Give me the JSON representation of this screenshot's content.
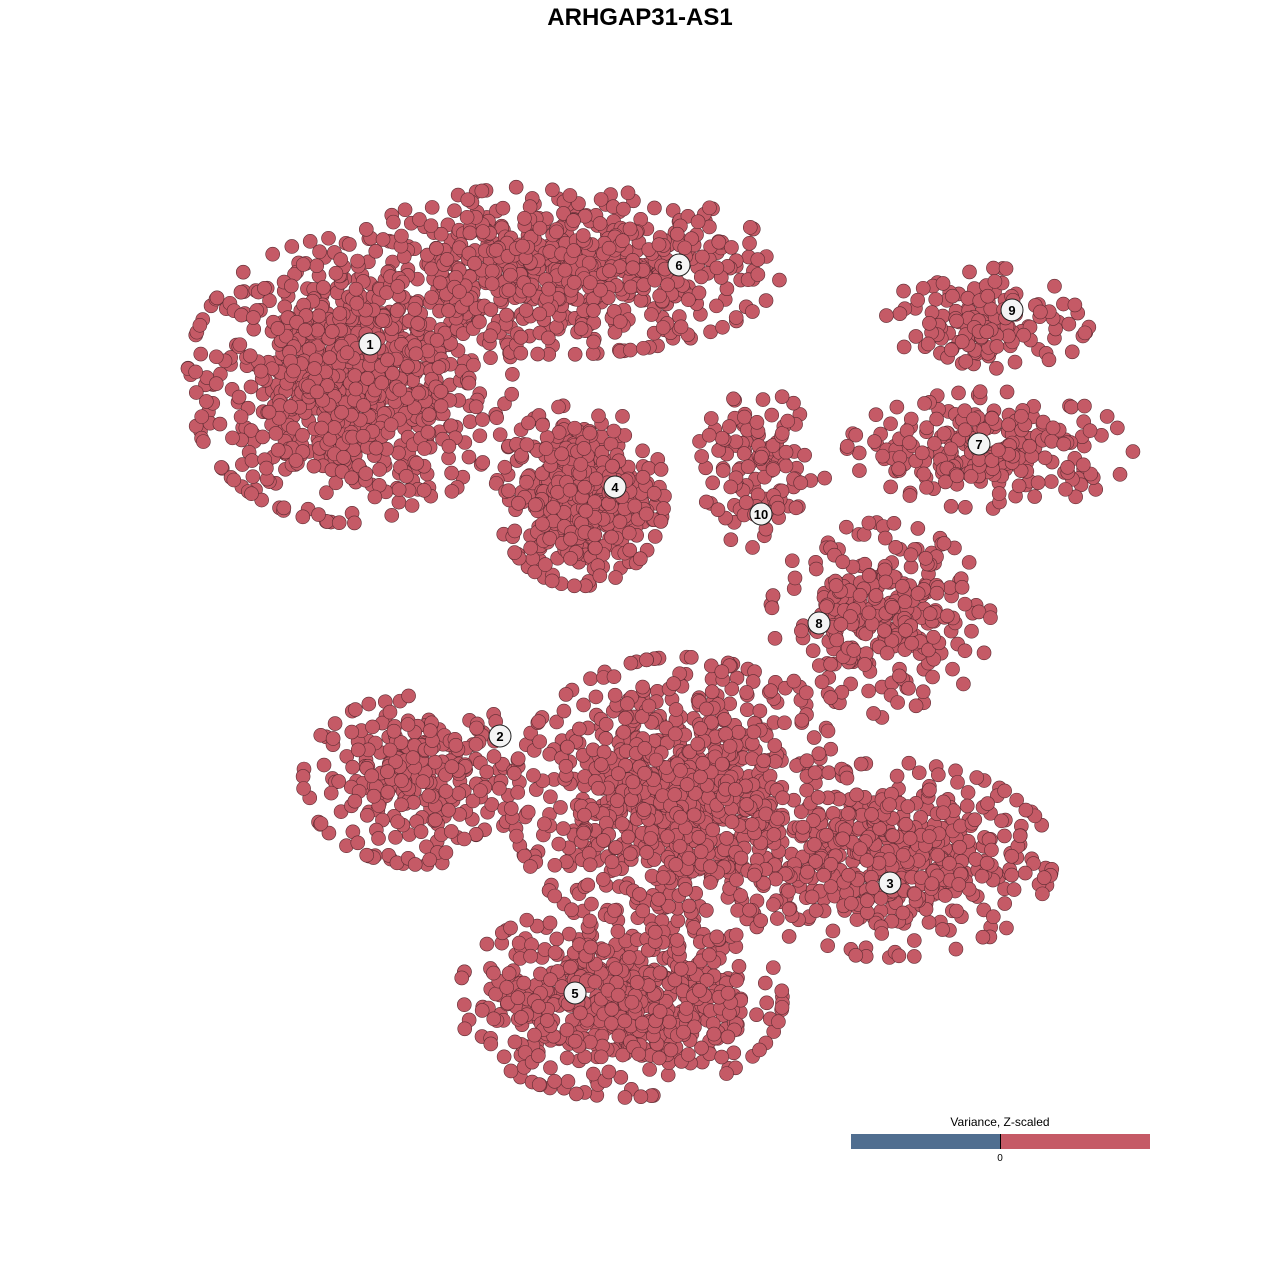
{
  "chart_data": {
    "type": "scatter",
    "title": "ARHGAP31-AS1",
    "xlabel": "",
    "ylabel": "",
    "xlim": [
      -64,
      64
    ],
    "ylim": [
      -64,
      64
    ],
    "grid": false,
    "point_color": "#c55a66",
    "clusters": [
      {
        "label": "1",
        "label_pos": [
          -27,
          29.6
        ],
        "components": [
          {
            "center": [
              -29,
              26
            ],
            "spread": [
              12.5,
              11
            ],
            "n": 900
          }
        ]
      },
      {
        "label": "2",
        "label_pos": [
          -14,
          -9.6
        ],
        "components": [
          {
            "center": [
              -22,
              -14
            ],
            "spread": [
              9,
              6.5
            ],
            "n": 300
          }
        ]
      },
      {
        "label": "3",
        "label_pos": [
          25,
          -24.3
        ],
        "components": [
          {
            "center": [
              25,
              -22
            ],
            "spread": [
              12.5,
              7.5
            ],
            "n": 500
          }
        ]
      },
      {
        "label": "4",
        "label_pos": [
          -2.5,
          15.3
        ],
        "components": [
          {
            "center": [
              -6,
              14.5
            ],
            "spread": [
              6.5,
              7
            ],
            "n": 500
          }
        ]
      },
      {
        "label": "5",
        "label_pos": [
          -6.5,
          -35.3
        ],
        "components": [
          {
            "center": [
              -2,
              -36
            ],
            "spread": [
              12.5,
              7.5
            ],
            "n": 600
          },
          {
            "center": [
              4,
              -16
            ],
            "spread": [
              13,
              11
            ],
            "n": 900
          }
        ]
      },
      {
        "label": "6",
        "label_pos": [
          3.9,
          37.5
        ],
        "components": [
          {
            "center": [
              -8,
              37
            ],
            "spread": [
              17,
              6.5
            ],
            "n": 700
          }
        ]
      },
      {
        "label": "7",
        "label_pos": [
          33.9,
          19.6
        ],
        "components": [
          {
            "center": [
              35,
              19
            ],
            "spread": [
              11,
              4.5
            ],
            "n": 250
          }
        ]
      },
      {
        "label": "8",
        "label_pos": [
          17.9,
          1.7
        ],
        "components": [
          {
            "center": [
              24,
              2
            ],
            "spread": [
              8.5,
              7.5
            ],
            "n": 300
          }
        ]
      },
      {
        "label": "9",
        "label_pos": [
          37.2,
          33
        ],
        "components": [
          {
            "center": [
              35,
              32
            ],
            "spread": [
              8,
              4
            ],
            "n": 150
          }
        ]
      },
      {
        "label": "10",
        "label_pos": [
          12.1,
          12.6
        ],
        "components": [
          {
            "center": [
              12,
              17
            ],
            "spread": [
              5,
              6
            ],
            "n": 120
          }
        ]
      }
    ],
    "legend": {
      "title": "Variance, Z-scaled",
      "tick": "0",
      "low_color": "#506e90",
      "high_color": "#c55a66",
      "placement": "bottom-right"
    }
  }
}
